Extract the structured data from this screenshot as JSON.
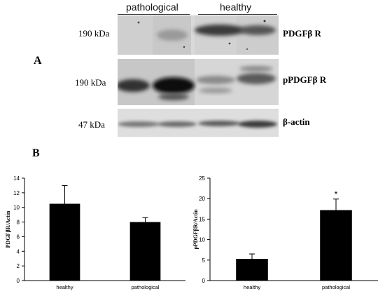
{
  "panel_a": {
    "label": "A",
    "groups": [
      "pathological",
      "healthy"
    ],
    "rows": [
      {
        "kda": "190 kDa",
        "protein": "PDGFβ R"
      },
      {
        "kda": "190 kDa",
        "protein": "pPDGFβ R"
      },
      {
        "kda": "47 kDa",
        "protein": "β-actin"
      }
    ]
  },
  "panel_b": {
    "label": "B"
  },
  "chart_data": [
    {
      "type": "bar",
      "categories": [
        "healthy",
        "pathological"
      ],
      "values": [
        10.5,
        8.0
      ],
      "errors": [
        2.5,
        0.6
      ],
      "ylabel": "PDGFβR/Actin",
      "ylim": [
        0,
        14
      ],
      "yticks": [
        0,
        2,
        4,
        6,
        8,
        10,
        12,
        14
      ],
      "annotations": [],
      "bar_color": "#000000"
    },
    {
      "type": "bar",
      "categories": [
        "healthy",
        "pathological"
      ],
      "values": [
        5.3,
        17.2
      ],
      "errors": [
        1.2,
        2.7
      ],
      "ylabel": "pPDGFβR/Actin",
      "ylim": [
        0,
        25
      ],
      "yticks": [
        0,
        5,
        10,
        15,
        20,
        25
      ],
      "annotations": [
        "",
        "*"
      ],
      "bar_color": "#000000"
    }
  ]
}
